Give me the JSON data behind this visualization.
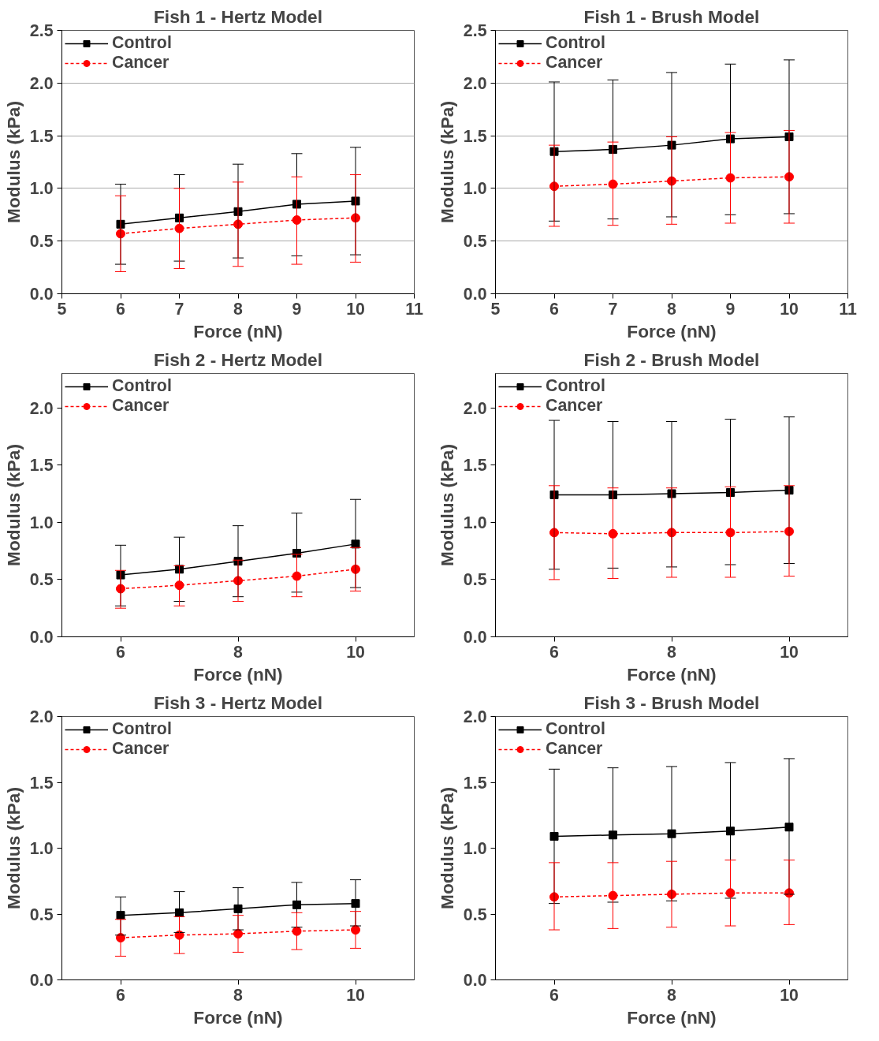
{
  "chart_data": [
    {
      "type": "line",
      "title": "Fish 1 - Hertz Model",
      "xlabel": "Force (nN)",
      "ylabel": "Modulus (kPa)",
      "x": [
        6,
        7,
        8,
        9,
        10
      ],
      "xlim": [
        5,
        11
      ],
      "xticks": [
        5,
        6,
        7,
        8,
        9,
        10,
        11
      ],
      "ylim": [
        0,
        2.5
      ],
      "yticks": [
        {
          "value": 0,
          "label": "0.0"
        },
        0.5,
        {
          "value": 1,
          "label": "1.0"
        },
        1.5,
        {
          "value": 2,
          "label": "2.0"
        },
        2.5
      ],
      "grid": "y",
      "legend": "top left",
      "series": [
        {
          "name": "Control",
          "color": "#000000",
          "marker": "square",
          "line_style": "solid",
          "values": [
            0.66,
            0.72,
            0.78,
            0.85,
            0.88
          ],
          "errors": [
            [
              0.28,
              1.04
            ],
            [
              0.31,
              1.13
            ],
            [
              0.34,
              1.23
            ],
            [
              0.36,
              1.33
            ],
            [
              0.37,
              1.39
            ]
          ]
        },
        {
          "name": "Cancer",
          "color": "#ff0000",
          "marker": "circle",
          "line_style": "dashed",
          "values": [
            0.57,
            0.62,
            0.66,
            0.7,
            0.72
          ],
          "errors": [
            [
              0.21,
              0.93
            ],
            [
              0.24,
              1.0
            ],
            [
              0.26,
              1.06
            ],
            [
              0.28,
              1.11
            ],
            [
              0.3,
              1.13
            ]
          ]
        }
      ]
    },
    {
      "type": "line",
      "title": "Fish 1 - Brush Model",
      "xlabel": "Force (nN)",
      "ylabel": "Modulus (kPa)",
      "x": [
        6,
        7,
        8,
        9,
        10
      ],
      "xlim": [
        5,
        11
      ],
      "xticks": [
        5,
        6,
        7,
        8,
        9,
        10,
        11
      ],
      "ylim": [
        0,
        2.5
      ],
      "yticks": [
        {
          "value": 0,
          "label": "0.0"
        },
        0.5,
        {
          "value": 1,
          "label": "1.0"
        },
        1.5,
        {
          "value": 2,
          "label": "2.0"
        },
        2.5
      ],
      "grid": "y",
      "legend": "top left",
      "series": [
        {
          "name": "Control",
          "color": "#000000",
          "marker": "square",
          "line_style": "solid",
          "values": [
            1.35,
            1.37,
            1.41,
            1.47,
            1.49
          ],
          "errors": [
            [
              0.69,
              2.01
            ],
            [
              0.71,
              2.03
            ],
            [
              0.73,
              2.1
            ],
            [
              0.75,
              2.18
            ],
            [
              0.76,
              2.22
            ]
          ]
        },
        {
          "name": "Cancer",
          "color": "#ff0000",
          "marker": "circle",
          "line_style": "dashed",
          "values": [
            1.02,
            1.04,
            1.07,
            1.1,
            1.11
          ],
          "errors": [
            [
              0.64,
              1.41
            ],
            [
              0.65,
              1.44
            ],
            [
              0.66,
              1.49
            ],
            [
              0.67,
              1.53
            ],
            [
              0.67,
              1.55
            ]
          ]
        }
      ]
    },
    {
      "type": "line",
      "title": "Fish 2 - Hertz Model",
      "xlabel": "Force (nN)",
      "ylabel": "Modulus (kPa)",
      "x": [
        6,
        7,
        8,
        9,
        10
      ],
      "xlim": [
        5,
        11
      ],
      "xticks": [
        6,
        8,
        10
      ],
      "ylim": [
        0,
        2.3
      ],
      "yticks": [
        {
          "value": 0,
          "label": "0.0"
        },
        0.5,
        {
          "value": 1,
          "label": "1.0"
        },
        1.5,
        {
          "value": 2,
          "label": "2.0"
        }
      ],
      "legend": "top left",
      "series": [
        {
          "name": "Control",
          "color": "#000000",
          "marker": "square",
          "line_style": "solid",
          "values": [
            0.54,
            0.59,
            0.66,
            0.73,
            0.81
          ],
          "errors": [
            [
              0.27,
              0.8
            ],
            [
              0.31,
              0.87
            ],
            [
              0.35,
              0.97
            ],
            [
              0.39,
              1.08
            ],
            [
              0.43,
              1.2
            ]
          ]
        },
        {
          "name": "Cancer",
          "color": "#ff0000",
          "marker": "circle",
          "line_style": "dashed",
          "values": [
            0.42,
            0.45,
            0.49,
            0.53,
            0.59
          ],
          "errors": [
            [
              0.25,
              0.58
            ],
            [
              0.27,
              0.62
            ],
            [
              0.31,
              0.67
            ],
            [
              0.35,
              0.72
            ],
            [
              0.4,
              0.78
            ]
          ]
        }
      ]
    },
    {
      "type": "line",
      "title": "Fish 2 - Brush Model",
      "xlabel": "Force (nN)",
      "ylabel": "Modulus (kPa)",
      "x": [
        6,
        7,
        8,
        9,
        10
      ],
      "xlim": [
        5,
        11
      ],
      "xticks": [
        6,
        8,
        10
      ],
      "ylim": [
        0,
        2.3
      ],
      "yticks": [
        {
          "value": 0,
          "label": "0.0"
        },
        0.5,
        {
          "value": 1,
          "label": "1.0"
        },
        1.5,
        {
          "value": 2,
          "label": "2.0"
        }
      ],
      "legend": "top left",
      "series": [
        {
          "name": "Control",
          "color": "#000000",
          "marker": "square",
          "line_style": "solid",
          "values": [
            1.24,
            1.24,
            1.25,
            1.26,
            1.28
          ],
          "errors": [
            [
              0.59,
              1.89
            ],
            [
              0.6,
              1.88
            ],
            [
              0.61,
              1.88
            ],
            [
              0.63,
              1.9
            ],
            [
              0.64,
              1.92
            ]
          ]
        },
        {
          "name": "Cancer",
          "color": "#ff0000",
          "marker": "circle",
          "line_style": "dashed",
          "values": [
            0.91,
            0.9,
            0.91,
            0.91,
            0.92
          ],
          "errors": [
            [
              0.5,
              1.32
            ],
            [
              0.51,
              1.3
            ],
            [
              0.52,
              1.3
            ],
            [
              0.52,
              1.31
            ],
            [
              0.53,
              1.32
            ]
          ]
        }
      ]
    },
    {
      "type": "line",
      "title": "Fish 3 - Hertz Model",
      "xlabel": "Force (nN)",
      "ylabel": "Modulus (kPa)",
      "x": [
        6,
        7,
        8,
        9,
        10
      ],
      "xlim": [
        5,
        11
      ],
      "xticks": [
        6,
        8,
        10
      ],
      "ylim": [
        0,
        2.0
      ],
      "yticks": [
        {
          "value": 0,
          "label": "0.0"
        },
        0.5,
        {
          "value": 1,
          "label": "1.0"
        },
        1.5,
        {
          "value": 2,
          "label": "2.0"
        }
      ],
      "legend": "top left",
      "series": [
        {
          "name": "Control",
          "color": "#000000",
          "marker": "square",
          "line_style": "solid",
          "values": [
            0.49,
            0.51,
            0.54,
            0.57,
            0.58
          ],
          "errors": [
            [
              0.34,
              0.63
            ],
            [
              0.36,
              0.67
            ],
            [
              0.38,
              0.7
            ],
            [
              0.4,
              0.74
            ],
            [
              0.41,
              0.76
            ]
          ]
        },
        {
          "name": "Cancer",
          "color": "#ff0000",
          "marker": "circle",
          "line_style": "dashed",
          "values": [
            0.32,
            0.34,
            0.35,
            0.37,
            0.38
          ],
          "errors": [
            [
              0.18,
              0.46
            ],
            [
              0.2,
              0.48
            ],
            [
              0.21,
              0.49
            ],
            [
              0.23,
              0.51
            ],
            [
              0.24,
              0.52
            ]
          ]
        }
      ]
    },
    {
      "type": "line",
      "title": "Fish 3 - Brush Model",
      "xlabel": "Force (nN)",
      "ylabel": "Modulus (kPa)",
      "x": [
        6,
        7,
        8,
        9,
        10
      ],
      "xlim": [
        5,
        11
      ],
      "xticks": [
        6,
        8,
        10
      ],
      "ylim": [
        0,
        2.0
      ],
      "yticks": [
        {
          "value": 0,
          "label": "0.0"
        },
        0.5,
        {
          "value": 1,
          "label": "1.0"
        },
        1.5,
        {
          "value": 2,
          "label": "2.0"
        }
      ],
      "legend": "top left",
      "series": [
        {
          "name": "Control",
          "color": "#000000",
          "marker": "square",
          "line_style": "solid",
          "values": [
            1.09,
            1.1,
            1.11,
            1.13,
            1.16
          ],
          "errors": [
            [
              0.58,
              1.6
            ],
            [
              0.59,
              1.61
            ],
            [
              0.6,
              1.62
            ],
            [
              0.62,
              1.65
            ],
            [
              0.65,
              1.68
            ]
          ]
        },
        {
          "name": "Cancer",
          "color": "#ff0000",
          "marker": "circle",
          "line_style": "dashed",
          "values": [
            0.63,
            0.64,
            0.65,
            0.66,
            0.66
          ],
          "errors": [
            [
              0.38,
              0.89
            ],
            [
              0.39,
              0.89
            ],
            [
              0.4,
              0.9
            ],
            [
              0.41,
              0.91
            ],
            [
              0.42,
              0.91
            ]
          ]
        }
      ]
    }
  ]
}
